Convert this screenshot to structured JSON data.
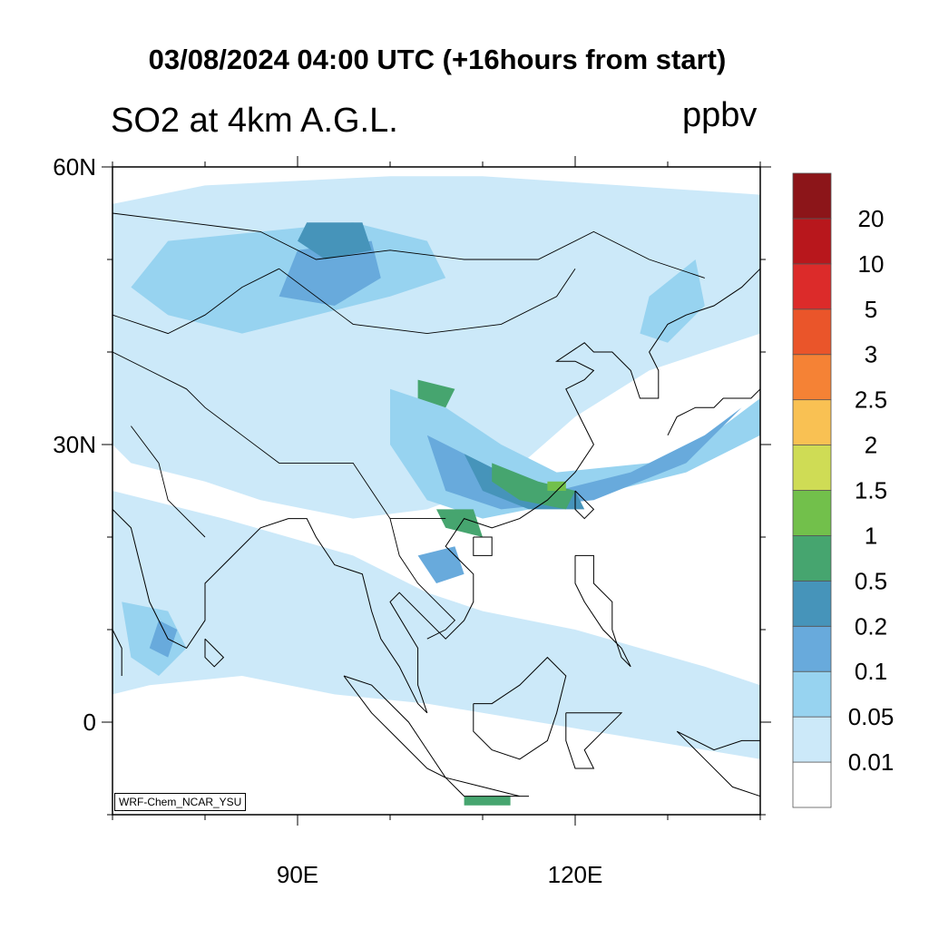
{
  "title": "03/08/2024 04:00 UTC (+16hours from start)",
  "variable": "SO2 at 4km A.G.L.",
  "units": "ppbv",
  "model_tag": "WRF-Chem_NCAR_YSU",
  "map": {
    "lon_range": [
      70,
      140
    ],
    "lat_range": [
      -10,
      60
    ],
    "lat_ticks": [
      {
        "value": 60,
        "label": "60N"
      },
      {
        "value": 30,
        "label": "30N"
      },
      {
        "value": 0,
        "label": "0"
      }
    ],
    "lon_ticks": [
      {
        "value": 90,
        "label": "90E"
      },
      {
        "value": 120,
        "label": "120E"
      }
    ],
    "minor_ticks_deg": 10
  },
  "colorbar": {
    "labels": [
      "0.01",
      "0.05",
      "0.1",
      "0.2",
      "0.5",
      "1",
      "1.5",
      "2",
      "2.5",
      "3",
      "5",
      "10",
      "20"
    ],
    "colors": [
      "#ffffff",
      "#cce9f9",
      "#97d3f0",
      "#68aadc",
      "#4694ba",
      "#46a56f",
      "#72c04b",
      "#cfdc55",
      "#f9c153",
      "#f58235",
      "#ea552a",
      "#dc2b2a",
      "#b8171c",
      "#8c1519"
    ]
  },
  "fields": [
    {
      "level": 1,
      "points": [
        [
          70,
          56
        ],
        [
          80,
          58
        ],
        [
          100,
          59
        ],
        [
          110,
          59
        ],
        [
          125,
          58
        ],
        [
          140,
          57
        ],
        [
          140,
          42
        ],
        [
          128,
          38
        ],
        [
          120,
          33
        ],
        [
          112,
          26
        ],
        [
          104,
          23
        ],
        [
          96,
          22
        ],
        [
          86,
          24
        ],
        [
          80,
          26
        ],
        [
          72,
          28
        ],
        [
          70,
          30
        ]
      ]
    },
    {
      "level": 1,
      "points": [
        [
          70,
          25
        ],
        [
          82,
          22
        ],
        [
          96,
          18
        ],
        [
          104,
          14
        ],
        [
          110,
          12
        ],
        [
          120,
          10
        ],
        [
          134,
          6
        ],
        [
          140,
          4
        ],
        [
          140,
          -4
        ],
        [
          128,
          -2
        ],
        [
          116,
          0
        ],
        [
          104,
          2
        ],
        [
          94,
          3
        ],
        [
          84,
          5
        ],
        [
          74,
          4
        ],
        [
          70,
          3
        ]
      ]
    },
    {
      "level": 2,
      "points": [
        [
          76,
          52
        ],
        [
          86,
          53
        ],
        [
          96,
          54
        ],
        [
          104,
          52
        ],
        [
          106,
          48
        ],
        [
          100,
          46
        ],
        [
          92,
          44
        ],
        [
          84,
          42
        ],
        [
          76,
          44
        ],
        [
          72,
          47
        ]
      ]
    },
    {
      "level": 2,
      "points": [
        [
          100,
          36
        ],
        [
          106,
          34
        ],
        [
          112,
          30
        ],
        [
          118,
          27
        ],
        [
          128,
          28
        ],
        [
          136,
          32
        ],
        [
          140,
          35
        ],
        [
          140,
          31
        ],
        [
          132,
          27
        ],
        [
          120,
          24
        ],
        [
          110,
          22
        ],
        [
          104,
          24
        ],
        [
          100,
          30
        ]
      ]
    },
    {
      "level": 2,
      "points": [
        [
          128,
          46
        ],
        [
          133,
          50
        ],
        [
          134,
          45
        ],
        [
          130,
          41
        ],
        [
          127,
          42
        ]
      ]
    },
    {
      "level": 2,
      "points": [
        [
          71,
          13
        ],
        [
          76,
          12
        ],
        [
          78,
          8
        ],
        [
          75,
          5
        ],
        [
          72,
          7
        ]
      ]
    },
    {
      "level": 3,
      "points": [
        [
          90,
          51
        ],
        [
          98,
          52
        ],
        [
          99,
          48
        ],
        [
          94,
          45
        ],
        [
          88,
          46
        ]
      ]
    },
    {
      "level": 3,
      "points": [
        [
          104,
          31
        ],
        [
          112,
          27
        ],
        [
          118,
          25
        ],
        [
          126,
          27
        ],
        [
          134,
          31
        ],
        [
          138,
          34
        ],
        [
          132,
          28
        ],
        [
          122,
          24
        ],
        [
          112,
          23
        ],
        [
          106,
          25
        ]
      ]
    },
    {
      "level": 3,
      "points": [
        [
          103,
          18
        ],
        [
          107,
          19
        ],
        [
          108,
          16
        ],
        [
          105,
          15
        ]
      ]
    },
    {
      "level": 3,
      "points": [
        [
          75,
          11
        ],
        [
          77,
          10
        ],
        [
          76,
          7
        ],
        [
          74,
          8
        ]
      ]
    },
    {
      "level": 4,
      "points": [
        [
          91,
          54
        ],
        [
          97,
          54
        ],
        [
          98,
          51
        ],
        [
          93,
          50
        ],
        [
          90,
          52
        ]
      ]
    },
    {
      "level": 4,
      "points": [
        [
          108,
          29
        ],
        [
          114,
          26
        ],
        [
          120,
          25
        ],
        [
          121,
          23
        ],
        [
          115,
          23
        ],
        [
          110,
          25
        ]
      ]
    },
    {
      "level": 5,
      "points": [
        [
          103,
          37
        ],
        [
          107,
          36
        ],
        [
          106,
          34
        ],
        [
          103,
          35
        ]
      ]
    },
    {
      "level": 5,
      "points": [
        [
          111,
          28
        ],
        [
          116,
          26
        ],
        [
          120,
          25
        ],
        [
          119,
          23
        ],
        [
          114,
          24
        ],
        [
          111,
          26
        ]
      ]
    },
    {
      "level": 5,
      "points": [
        [
          105,
          23
        ],
        [
          109,
          23
        ],
        [
          110,
          20
        ],
        [
          106,
          21
        ]
      ]
    },
    {
      "level": 5,
      "points": [
        [
          108,
          -8
        ],
        [
          113,
          -8
        ],
        [
          113,
          -9
        ],
        [
          108,
          -9
        ]
      ]
    },
    {
      "level": 6,
      "points": [
        [
          117,
          26
        ],
        [
          119,
          26
        ],
        [
          119,
          25
        ],
        [
          117,
          25
        ]
      ]
    }
  ],
  "boundaries": [
    {
      "points": [
        [
          70,
          55
        ],
        [
          78,
          54
        ],
        [
          86,
          53
        ],
        [
          92,
          50
        ],
        [
          100,
          51
        ],
        [
          108,
          50
        ],
        [
          116,
          50
        ],
        [
          122,
          53
        ],
        [
          128,
          50
        ],
        [
          134,
          48
        ]
      ]
    },
    {
      "points": [
        [
          88,
          49
        ],
        [
          92,
          46
        ],
        [
          96,
          43
        ],
        [
          104,
          42
        ],
        [
          112,
          43
        ],
        [
          118,
          46
        ],
        [
          120,
          49
        ]
      ]
    },
    {
      "points": [
        [
          70,
          40
        ],
        [
          74,
          38
        ],
        [
          78,
          36
        ],
        [
          80,
          34
        ],
        [
          84,
          31
        ],
        [
          88,
          28
        ],
        [
          92,
          28
        ],
        [
          96,
          28
        ],
        [
          98,
          25
        ],
        [
          100,
          22
        ],
        [
          102,
          22
        ],
        [
          106,
          22
        ]
      ]
    },
    {
      "points": [
        [
          100,
          22
        ],
        [
          101,
          18
        ],
        [
          103,
          15
        ],
        [
          105,
          13
        ],
        [
          107,
          11
        ],
        [
          106,
          10
        ],
        [
          104,
          9
        ]
      ]
    },
    {
      "points": [
        [
          70,
          44
        ],
        [
          76,
          42
        ],
        [
          80,
          44
        ],
        [
          84,
          47
        ],
        [
          88,
          49
        ]
      ]
    },
    {
      "points": [
        [
          72,
          32
        ],
        [
          75,
          28
        ],
        [
          76,
          24
        ],
        [
          78,
          22
        ],
        [
          80,
          20
        ]
      ]
    }
  ],
  "coastlines": [
    {
      "points": [
        [
          70,
          23
        ],
        [
          72,
          21
        ],
        [
          73,
          17
        ],
        [
          74,
          13
        ],
        [
          76,
          9
        ],
        [
          78,
          8
        ],
        [
          80,
          11
        ],
        [
          80,
          15
        ],
        [
          83,
          18
        ],
        [
          86,
          21
        ],
        [
          89,
          22
        ],
        [
          91,
          22
        ],
        [
          92,
          20
        ],
        [
          94,
          17
        ],
        [
          97,
          16
        ],
        [
          98,
          12
        ],
        [
          99,
          9
        ],
        [
          101,
          6
        ],
        [
          103,
          2
        ],
        [
          104,
          1
        ]
      ]
    },
    {
      "points": [
        [
          104,
          1
        ],
        [
          103,
          4
        ],
        [
          103,
          8
        ],
        [
          100,
          13
        ],
        [
          101,
          14
        ],
        [
          104,
          11
        ],
        [
          106,
          9
        ],
        [
          108,
          11
        ],
        [
          109,
          13
        ],
        [
          109,
          16
        ],
        [
          106,
          19
        ],
        [
          108,
          22
        ],
        [
          111,
          21
        ],
        [
          114,
          22
        ],
        [
          117,
          24
        ],
        [
          120,
          27
        ],
        [
          122,
          30
        ],
        [
          121,
          32
        ],
        [
          120,
          34
        ],
        [
          119,
          36
        ],
        [
          121,
          37
        ],
        [
          122,
          38
        ],
        [
          120,
          39
        ],
        [
          118,
          39
        ],
        [
          121,
          41
        ],
        [
          122,
          40
        ],
        [
          124,
          40
        ],
        [
          126,
          38
        ],
        [
          127,
          35
        ],
        [
          129,
          35
        ],
        [
          129,
          38
        ],
        [
          128,
          40
        ],
        [
          130,
          43
        ],
        [
          132,
          44
        ],
        [
          135,
          45
        ],
        [
          138,
          47
        ],
        [
          140,
          49
        ]
      ]
    },
    {
      "points": [
        [
          80,
          9
        ],
        [
          81,
          8
        ],
        [
          82,
          7
        ],
        [
          81,
          6
        ],
        [
          80,
          7
        ],
        [
          80,
          9
        ]
      ]
    },
    {
      "points": [
        [
          120,
          25
        ],
        [
          121,
          24
        ],
        [
          122,
          23
        ],
        [
          121,
          22
        ],
        [
          120,
          23
        ],
        [
          120,
          25
        ]
      ]
    },
    {
      "points": [
        [
          109,
          20
        ],
        [
          111,
          20
        ],
        [
          111,
          18
        ],
        [
          109,
          18
        ],
        [
          109,
          20
        ]
      ]
    },
    {
      "points": [
        [
          95,
          5
        ],
        [
          98,
          4
        ],
        [
          102,
          0
        ],
        [
          104,
          -3
        ],
        [
          106,
          -6
        ],
        [
          104,
          -5
        ],
        [
          101,
          -2
        ],
        [
          98,
          1
        ],
        [
          95,
          5
        ]
      ]
    },
    {
      "points": [
        [
          106,
          -6
        ],
        [
          110,
          -7
        ],
        [
          114,
          -8
        ],
        [
          115,
          -8
        ],
        [
          112,
          -8
        ],
        [
          108,
          -8
        ],
        [
          106,
          -6
        ]
      ]
    },
    {
      "points": [
        [
          109,
          2
        ],
        [
          111,
          2
        ],
        [
          114,
          4
        ],
        [
          117,
          7
        ],
        [
          119,
          5
        ],
        [
          118,
          1
        ],
        [
          117,
          -2
        ],
        [
          114,
          -4
        ],
        [
          111,
          -3
        ],
        [
          109,
          -1
        ],
        [
          109,
          2
        ]
      ]
    },
    {
      "points": [
        [
          119,
          1
        ],
        [
          121,
          1
        ],
        [
          125,
          1
        ],
        [
          123,
          -1
        ],
        [
          121,
          -3
        ],
        [
          122,
          -5
        ],
        [
          120,
          -5
        ],
        [
          119,
          -2
        ],
        [
          119,
          1
        ]
      ]
    },
    {
      "points": [
        [
          131,
          -1
        ],
        [
          135,
          -3
        ],
        [
          138,
          -2
        ],
        [
          140,
          -2
        ],
        [
          140,
          -8
        ],
        [
          137,
          -7
        ],
        [
          134,
          -4
        ],
        [
          131,
          -1
        ]
      ]
    },
    {
      "points": [
        [
          120,
          18
        ],
        [
          122,
          18
        ],
        [
          122,
          15
        ],
        [
          124,
          13
        ],
        [
          124,
          10
        ],
        [
          125,
          7
        ],
        [
          126,
          6
        ],
        [
          125,
          8
        ],
        [
          123,
          10
        ],
        [
          121,
          13
        ],
        [
          120,
          15
        ],
        [
          120,
          18
        ]
      ]
    },
    {
      "points": [
        [
          130,
          31
        ],
        [
          131,
          33
        ],
        [
          133,
          34
        ],
        [
          135,
          34
        ],
        [
          136,
          35
        ],
        [
          139,
          35
        ],
        [
          140,
          36
        ],
        [
          140,
          38
        ],
        [
          140,
          41
        ],
        [
          141,
          43
        ],
        [
          140,
          45
        ]
      ]
    },
    {
      "points": [
        [
          70,
          10
        ],
        [
          71,
          8
        ],
        [
          71,
          5
        ]
      ]
    }
  ]
}
